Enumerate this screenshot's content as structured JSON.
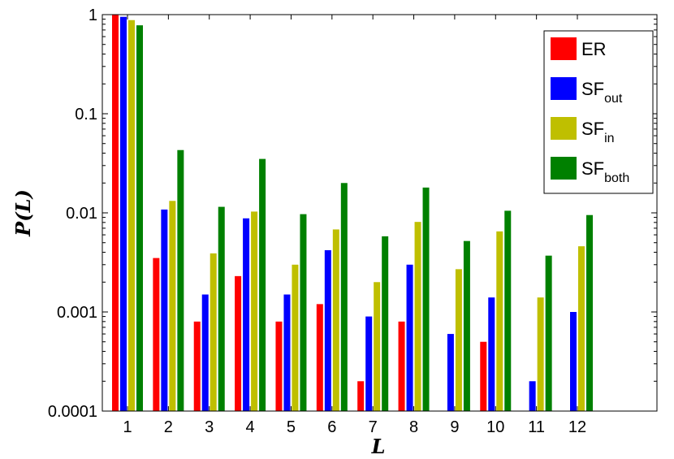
{
  "chart_data": {
    "type": "bar",
    "scale": "log",
    "categories": [
      "1",
      "2",
      "3",
      "4",
      "5",
      "6",
      "7",
      "8",
      "9",
      "10",
      "11",
      "12"
    ],
    "series": [
      {
        "name": "ER",
        "name_main": "ER",
        "name_sub": "",
        "color": "#ff0000",
        "values": [
          1.0,
          0.0035,
          0.0008,
          0.0023,
          0.0008,
          0.0012,
          0.0002,
          0.0008,
          null,
          0.0005,
          null,
          null
        ]
      },
      {
        "name": "SFout",
        "name_main": "SF",
        "name_sub": "out",
        "color": "#0000ff",
        "values": [
          0.95,
          0.0108,
          0.0015,
          0.0088,
          0.0015,
          0.0042,
          0.0009,
          0.003,
          0.0006,
          0.0014,
          0.0002,
          0.001
        ]
      },
      {
        "name": "SFin",
        "name_main": "SF",
        "name_sub": "in",
        "color": "#bfbf00",
        "values": [
          0.88,
          0.0132,
          0.0039,
          0.0103,
          0.003,
          0.0068,
          0.002,
          0.0081,
          0.0027,
          0.0065,
          0.0014,
          0.0046
        ]
      },
      {
        "name": "SFboth",
        "name_main": "SF",
        "name_sub": "both",
        "color": "#008000",
        "values": [
          0.78,
          0.043,
          0.0115,
          0.035,
          0.0097,
          0.02,
          0.0058,
          0.018,
          0.0052,
          0.0105,
          0.0037,
          0.0095
        ]
      }
    ],
    "yticks": [
      {
        "value": 1,
        "label": "1"
      },
      {
        "value": 0.1,
        "label": "0.1"
      },
      {
        "value": 0.01,
        "label": "0.01"
      },
      {
        "value": 0.001,
        "label": "0.001"
      },
      {
        "value": 0.0001,
        "label": "0.0001"
      }
    ],
    "ylim": [
      0.0001,
      1
    ],
    "xlabel": "L",
    "ylabel": "P(L)",
    "legend_position": "top-right",
    "grid": false
  }
}
